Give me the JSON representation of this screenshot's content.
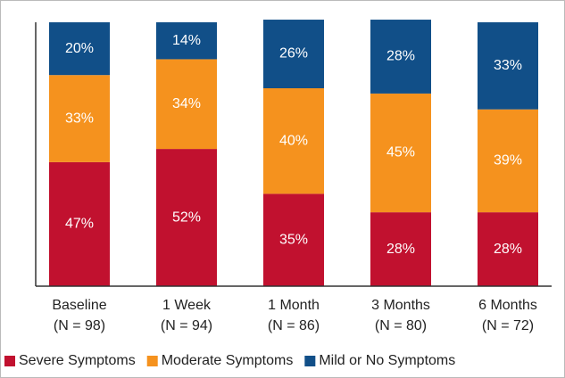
{
  "chart_data": {
    "type": "stacked_bar",
    "categories": [
      "Baseline",
      "1 Week",
      "1 Month",
      "3 Months",
      "6 Months"
    ],
    "category_sublabels": [
      "(N = 98)",
      "(N = 94)",
      "(N = 86)",
      "(N = 80)",
      "(N = 72)"
    ],
    "series": [
      {
        "name": "Severe Symptoms",
        "color": "#c1112f",
        "values": [
          47,
          52,
          35,
          28,
          28
        ],
        "value_labels": [
          "47%",
          "52%",
          "35%",
          "28%",
          "28%"
        ]
      },
      {
        "name": "Moderate Symptoms",
        "color": "#f5921e",
        "values": [
          33,
          34,
          40,
          45,
          39
        ],
        "value_labels": [
          "33%",
          "34%",
          "40%",
          "45%",
          "39%"
        ]
      },
      {
        "name": "Mild or No Symptoms",
        "color": "#114f88",
        "values": [
          20,
          14,
          26,
          28,
          33
        ],
        "value_labels": [
          "20%",
          "14%",
          "26%",
          "28%",
          "33%"
        ]
      }
    ],
    "ylim": [
      0,
      100
    ],
    "legend": "bottom"
  }
}
